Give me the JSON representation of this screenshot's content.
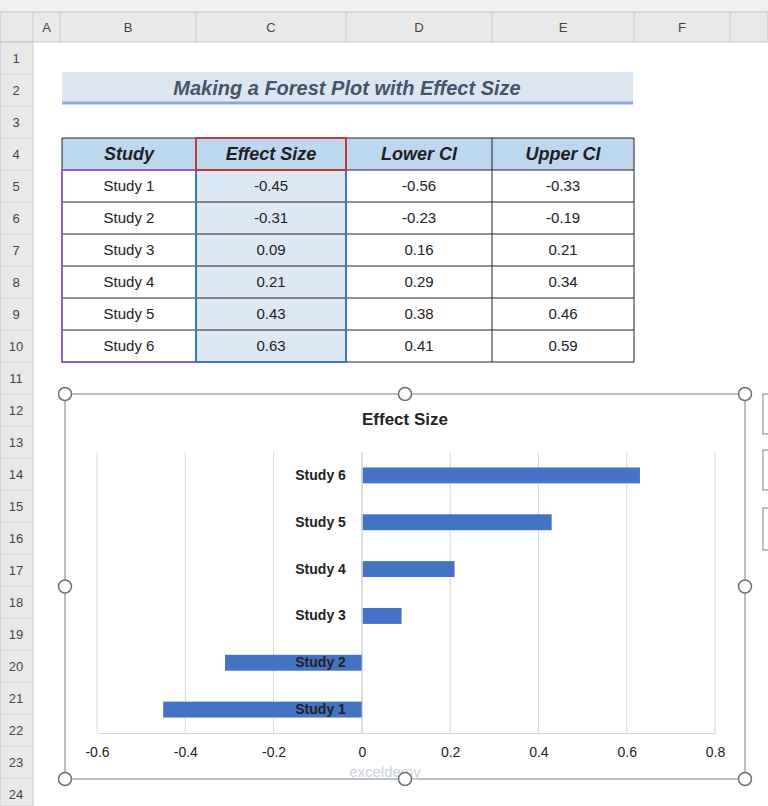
{
  "sheet": {
    "columns": [
      "A",
      "B",
      "C",
      "D",
      "E",
      "F"
    ],
    "row_numbers": [
      1,
      2,
      3,
      4,
      5,
      6,
      7,
      8,
      9,
      10,
      11,
      12,
      13,
      14,
      15,
      16,
      17,
      18,
      19,
      20,
      21,
      22,
      23,
      24
    ],
    "title": "Making a Forest Plot with Effect Size",
    "table": {
      "header": [
        "Study",
        "Effect Size",
        "Lower CI",
        "Upper CI"
      ],
      "rows": [
        [
          "Study 1",
          -0.45,
          -0.56,
          -0.33
        ],
        [
          "Study 2",
          -0.31,
          -0.23,
          -0.19
        ],
        [
          "Study 3",
          0.09,
          0.16,
          0.21
        ],
        [
          "Study 4",
          0.21,
          0.29,
          0.34
        ],
        [
          "Study 5",
          0.43,
          0.38,
          0.46
        ],
        [
          "Study 6",
          0.63,
          0.41,
          0.59
        ]
      ]
    },
    "watermark": "exceldemy"
  },
  "chart_data": {
    "type": "bar",
    "orientation": "horizontal",
    "title": "Effect Size",
    "categories": [
      "Study 1",
      "Study 2",
      "Study 3",
      "Study 4",
      "Study 5",
      "Study 6"
    ],
    "values": [
      -0.45,
      -0.31,
      0.09,
      0.21,
      0.43,
      0.63
    ],
    "color": "#4472c4",
    "xlim": [
      -0.6,
      0.8
    ],
    "xticks": [
      -0.6,
      -0.4,
      -0.2,
      0,
      0.2,
      0.4,
      0.6,
      0.8
    ],
    "grid": true
  }
}
